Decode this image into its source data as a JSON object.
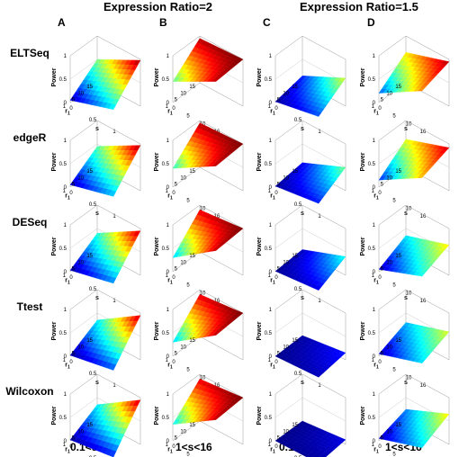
{
  "headers": {
    "left": "Expression Ratio=2",
    "right": "Expression Ratio=1.5"
  },
  "columns": [
    {
      "letter": "A",
      "footer": "0.1<s<1"
    },
    {
      "letter": "B",
      "footer": "1<s<16"
    },
    {
      "letter": "C",
      "footer": "0.1<s<1"
    },
    {
      "letter": "D",
      "footer": "1<s<16"
    }
  ],
  "rows": [
    "ELTSeq",
    "edgeR",
    "DESeq",
    "Ttest",
    "Wilcoxon"
  ],
  "axes": {
    "zlabel": "Power",
    "ylabel_r": "r",
    "ylabel_sub": "1",
    "xlabel": "s",
    "r_ticks": [
      "15",
      "10",
      "5",
      "1"
    ],
    "z_ticks": [
      "0",
      "0.5",
      "1"
    ],
    "s_ticks_small": [
      "0",
      "0.5",
      "1"
    ],
    "s_ticks_large": [
      "0",
      "5",
      "10",
      "16"
    ]
  },
  "colors": {
    "colormap": [
      "#00008f",
      "#0000ff",
      "#0080ff",
      "#00ffff",
      "#80ff80",
      "#ffff00",
      "#ff8000",
      "#ff0000",
      "#800000"
    ]
  },
  "chart_data": {
    "type": "surface",
    "description_of_value": "Power surfaces (z in 0–1) over r1 (1–15) and s for four conditions × five methods; values are approximate power at surface corners [r1=1,s=min], [r1=1,s=max], [r1=15,s=min], [r1=15,s=max].",
    "panels": [
      {
        "method": "ELTSeq",
        "column": "A",
        "corners": [
          0.05,
          0.35,
          0.5,
          0.98
        ]
      },
      {
        "method": "ELTSeq",
        "column": "B",
        "corners": [
          0.45,
          0.95,
          0.95,
          1.0
        ]
      },
      {
        "method": "ELTSeq",
        "column": "C",
        "corners": [
          0.02,
          0.2,
          0.15,
          0.6
        ]
      },
      {
        "method": "ELTSeq",
        "column": "D",
        "corners": [
          0.2,
          0.75,
          0.65,
          0.95
        ]
      },
      {
        "method": "edgeR",
        "column": "A",
        "corners": [
          0.05,
          0.3,
          0.45,
          0.97
        ]
      },
      {
        "method": "edgeR",
        "column": "B",
        "corners": [
          0.4,
          0.95,
          0.95,
          1.0
        ]
      },
      {
        "method": "edgeR",
        "column": "C",
        "corners": [
          0.02,
          0.15,
          0.1,
          0.5
        ]
      },
      {
        "method": "edgeR",
        "column": "D",
        "corners": [
          0.15,
          0.7,
          0.6,
          0.92
        ]
      },
      {
        "method": "DESeq",
        "column": "A",
        "corners": [
          0.03,
          0.25,
          0.4,
          0.95
        ]
      },
      {
        "method": "DESeq",
        "column": "B",
        "corners": [
          0.3,
          0.95,
          0.9,
          1.0
        ]
      },
      {
        "method": "DESeq",
        "column": "C",
        "corners": [
          0.01,
          0.1,
          0.05,
          0.4
        ]
      },
      {
        "method": "DESeq",
        "column": "D",
        "corners": [
          0.05,
          0.4,
          0.35,
          0.65
        ]
      },
      {
        "method": "Ttest",
        "column": "A",
        "corners": [
          0.02,
          0.2,
          0.35,
          0.95
        ]
      },
      {
        "method": "Ttest",
        "column": "B",
        "corners": [
          0.3,
          0.95,
          0.9,
          1.0
        ]
      },
      {
        "method": "Ttest",
        "column": "C",
        "corners": [
          0.0,
          0.05,
          0.02,
          0.15
        ]
      },
      {
        "method": "Ttest",
        "column": "D",
        "corners": [
          0.05,
          0.35,
          0.3,
          0.6
        ]
      },
      {
        "method": "Wilcoxon",
        "column": "A",
        "corners": [
          0.02,
          0.15,
          0.35,
          0.95
        ]
      },
      {
        "method": "Wilcoxon",
        "column": "B",
        "corners": [
          0.35,
          0.95,
          0.9,
          1.0
        ]
      },
      {
        "method": "Wilcoxon",
        "column": "C",
        "corners": [
          0.0,
          0.02,
          0.0,
          0.1
        ]
      },
      {
        "method": "Wilcoxon",
        "column": "D",
        "corners": [
          0.05,
          0.35,
          0.25,
          0.65
        ]
      }
    ]
  }
}
